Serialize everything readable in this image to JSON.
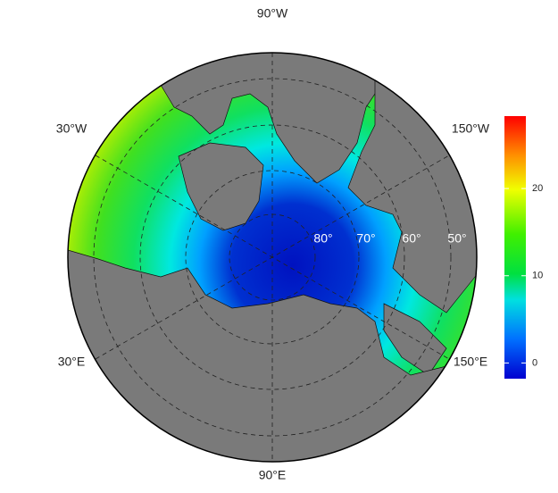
{
  "map": {
    "longitude_labels": [
      "90°W",
      "30°W",
      "150°W",
      "30°E",
      "150°E",
      "90°E"
    ],
    "latitude_labels": [
      "80°",
      "70°",
      "60°",
      "50°"
    ]
  },
  "colorbar": {
    "lim": [
      -1.8,
      28.3
    ],
    "ticks": [
      0,
      10,
      20
    ]
  }
}
